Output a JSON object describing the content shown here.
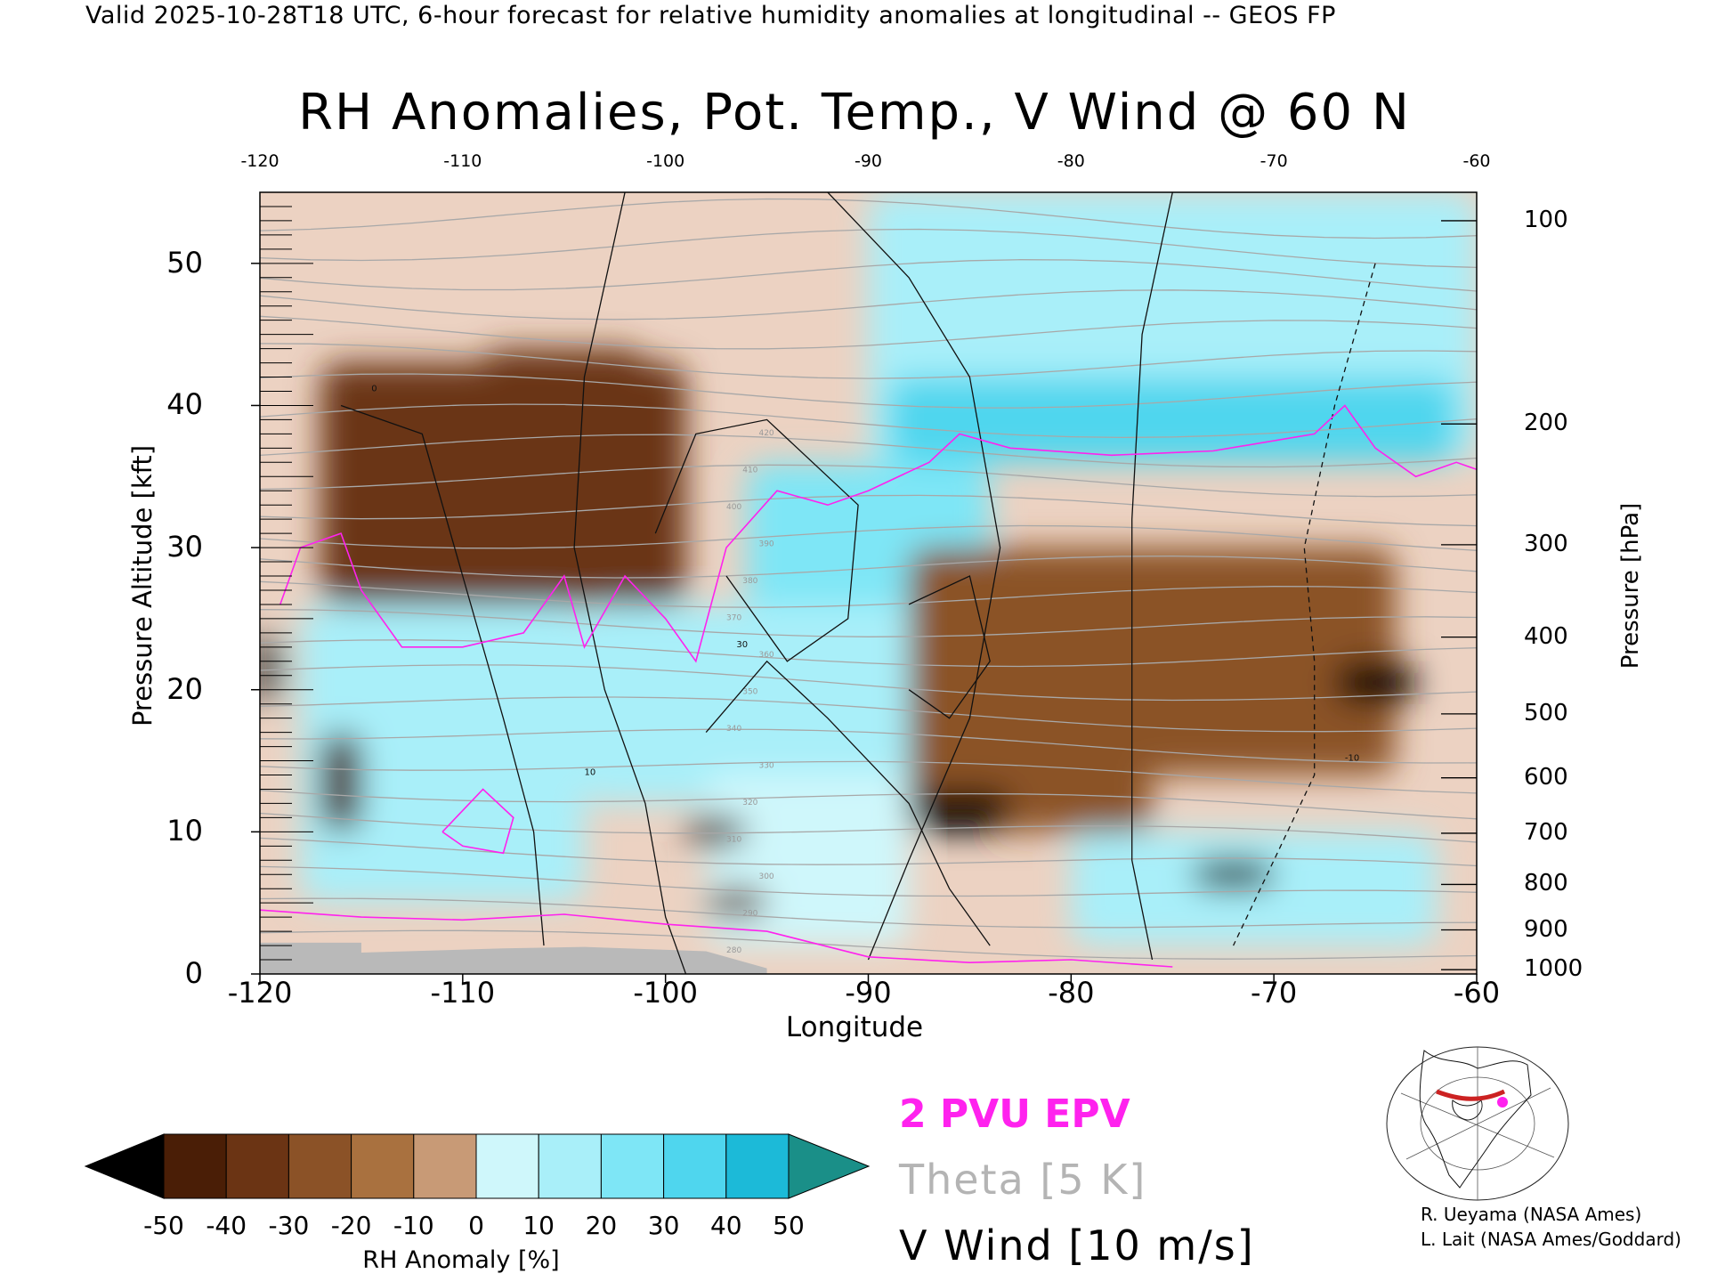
{
  "header": "Valid 2025-10-28T18 UTC, 6-hour forecast for relative humidity anomalies at longitudinal -- GEOS FP",
  "chart_data": {
    "type": "heatmap",
    "title": "RH Anomalies, Pot. Temp., V Wind @ 60 N",
    "xlabel": "Longitude",
    "ylabel_left": "Pressure Altitude [kft]",
    "ylabel_right": "Pressure [hPa]",
    "xlim": [
      -120,
      -60
    ],
    "ylim": [
      0,
      55
    ],
    "x_ticks": [
      "-120",
      "-110",
      "-100",
      "-90",
      "-80",
      "-70",
      "-60"
    ],
    "x_ticks_top": [
      "-120",
      "-110",
      "-100",
      "-90",
      "-80",
      "-70",
      "-60"
    ],
    "y_ticks": [
      "0",
      "10",
      "20",
      "30",
      "40",
      "50"
    ],
    "y_tick_values": [
      0,
      10,
      20,
      30,
      40,
      50
    ],
    "pressure_ticks": [
      {
        "label": "100",
        "kft": 53.0
      },
      {
        "label": "200",
        "kft": 38.7
      },
      {
        "label": "300",
        "kft": 30.2
      },
      {
        "label": "400",
        "kft": 23.7
      },
      {
        "label": "500",
        "kft": 18.3
      },
      {
        "label": "600",
        "kft": 13.8
      },
      {
        "label": "700",
        "kft": 9.9
      },
      {
        "label": "800",
        "kft": 6.3
      },
      {
        "label": "900",
        "kft": 3.1
      },
      {
        "label": "1000",
        "kft": 0.3
      }
    ],
    "colorbar": {
      "label": "RH Anomaly [%]",
      "ticks": [
        "-50",
        "-40",
        "-30",
        "-20",
        "-10",
        "0",
        "10",
        "20",
        "30",
        "40",
        "50"
      ],
      "colors": [
        "#4a1e06",
        "#6b3414",
        "#8b5227",
        "#a9713f",
        "#c89a76",
        "#ecd2c2",
        "#cff7fb",
        "#a9eff9",
        "#7ee6f6",
        "#4fd6ee",
        "#1cbad8"
      ],
      "under_color": "#000000",
      "over_color": "#1a8f88"
    },
    "anomaly_regions": [
      {
        "x": [
          -117,
          -99
        ],
        "y": [
          26,
          43
        ],
        "value": -35
      },
      {
        "x": [
          -109,
          -101
        ],
        "y": [
          34,
          44
        ],
        "value": -40
      },
      {
        "x": [
          -90,
          -60
        ],
        "y": [
          36,
          55
        ],
        "value": 20
      },
      {
        "x": [
          -89,
          -61
        ],
        "y": [
          36,
          42
        ],
        "value": 40
      },
      {
        "x": [
          -96,
          -84
        ],
        "y": [
          24,
          36
        ],
        "value": 35
      },
      {
        "x": [
          -118,
          -104
        ],
        "y": [
          5,
          26
        ],
        "value": 28
      },
      {
        "x": [
          -104,
          -87
        ],
        "y": [
          12,
          26
        ],
        "value": 22
      },
      {
        "x": [
          -98,
          -88
        ],
        "y": [
          2,
          14
        ],
        "value": 18
      },
      {
        "x": [
          -80,
          -62
        ],
        "y": [
          2,
          10
        ],
        "value": 20
      },
      {
        "x": [
          -88,
          -76
        ],
        "y": [
          10,
          30
        ],
        "value": -30
      },
      {
        "x": [
          -78,
          -64
        ],
        "y": [
          14,
          30
        ],
        "value": -25
      },
      {
        "x": [
          -88,
          -83
        ],
        "y": [
          10,
          13
        ],
        "value": -55
      },
      {
        "x": [
          -67,
          -63
        ],
        "y": [
          19,
          22
        ],
        "value": -55
      },
      {
        "x": [
          -74,
          -70
        ],
        "y": [
          6,
          8
        ],
        "value": -55
      },
      {
        "x": [
          -120,
          -119
        ],
        "y": [
          19,
          24
        ],
        "value": -55
      },
      {
        "x": [
          -117,
          -115
        ],
        "y": [
          10,
          17
        ],
        "value": -45
      },
      {
        "x": [
          -99,
          -96
        ],
        "y": [
          9,
          11
        ],
        "value": -45
      },
      {
        "x": [
          -98,
          -95
        ],
        "y": [
          4,
          6
        ],
        "value": -40
      }
    ],
    "theta_labels": [
      "280",
      "290",
      "300",
      "310",
      "320",
      "330",
      "340",
      "350",
      "360",
      "370",
      "380",
      "390",
      "400",
      "410",
      "420"
    ],
    "vwind_labels": [
      "0",
      "10",
      "30",
      "-10"
    ],
    "epv_label": "2 PVU EPV",
    "legend": [
      {
        "text": "2 PVU EPV",
        "color": "#ff22ee"
      },
      {
        "text": "Theta [5 K]",
        "color": "#b4b4b4"
      },
      {
        "text": "V Wind [10 m/s]",
        "color": "#000000"
      }
    ],
    "grid": false
  },
  "legend_texts": {
    "epv": "2 PVU EPV",
    "theta": "Theta [5 K]",
    "vwind": "V Wind [10 m/s]"
  },
  "credits": {
    "line1": "R. Ueyama (NASA Ames)",
    "line2": "L. Lait (NASA Ames/Goddard)"
  },
  "inset_map": {
    "track_color": "#cc2222",
    "marker_color": "#ff22ee"
  }
}
